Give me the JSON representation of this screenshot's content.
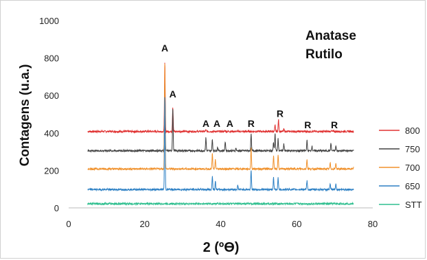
{
  "chart_data": {
    "type": "line",
    "xlabel": "2 (ºϴ)",
    "ylabel": "Contagens (u.a.)",
    "xlim": [
      0,
      80
    ],
    "ylim": [
      0,
      1000
    ],
    "xticks": [
      0,
      20,
      40,
      60,
      80
    ],
    "yticks": [
      0,
      200,
      400,
      600,
      800,
      1000
    ],
    "grid": false,
    "legend_position": "right",
    "annotation_lines": [
      "Anatase",
      "Rutilo"
    ],
    "x_range": [
      5,
      75
    ],
    "series": [
      {
        "name": "800",
        "color": "#e03030",
        "baseline": 408,
        "peaks": [
          [
            25.3,
            780
          ],
          [
            27.4,
            540
          ],
          [
            36.1,
            415
          ],
          [
            41.2,
            412
          ],
          [
            54.3,
            440
          ],
          [
            55.2,
            470
          ],
          [
            56.6,
            420
          ],
          [
            69.0,
            412
          ]
        ]
      },
      {
        "name": "750",
        "color": "#404040",
        "baseline": 305,
        "peaks": [
          [
            25.3,
            690
          ],
          [
            27.4,
            535
          ],
          [
            36.1,
            375
          ],
          [
            37.8,
            365
          ],
          [
            39.2,
            325
          ],
          [
            41.2,
            355
          ],
          [
            44.0,
            320
          ],
          [
            48.0,
            395
          ],
          [
            53.9,
            350
          ],
          [
            54.3,
            400
          ],
          [
            55.1,
            370
          ],
          [
            56.6,
            340
          ],
          [
            62.7,
            360
          ],
          [
            64.0,
            330
          ],
          [
            69.0,
            345
          ],
          [
            70.3,
            330
          ]
        ]
      },
      {
        "name": "700",
        "color": "#f0902a",
        "baseline": 208,
        "peaks": [
          [
            25.3,
            785
          ],
          [
            37.8,
            290
          ],
          [
            38.6,
            255
          ],
          [
            48.0,
            320
          ],
          [
            53.9,
            275
          ],
          [
            55.1,
            285
          ],
          [
            62.7,
            260
          ],
          [
            68.8,
            240
          ],
          [
            70.3,
            240
          ],
          [
            75.0,
            220
          ]
        ]
      },
      {
        "name": "650",
        "color": "#2b7fc4",
        "baseline": 98,
        "peaks": [
          [
            25.3,
            600
          ],
          [
            37.8,
            170
          ],
          [
            38.6,
            140
          ],
          [
            48.0,
            205
          ],
          [
            53.9,
            160
          ],
          [
            55.1,
            165
          ],
          [
            62.7,
            145
          ],
          [
            68.8,
            125
          ],
          [
            70.3,
            128
          ],
          [
            44.5,
            120
          ]
        ]
      },
      {
        "name": "STT",
        "color": "#2fbf8f",
        "baseline": 22,
        "peaks": []
      }
    ],
    "peak_labels": [
      {
        "text": "A",
        "x": 25.3,
        "y": 835
      },
      {
        "text": "A",
        "x": 27.4,
        "y": 590
      },
      {
        "text": "A",
        "x": 36.1,
        "y": 432
      },
      {
        "text": "A",
        "x": 39.0,
        "y": 432
      },
      {
        "text": "A",
        "x": 42.4,
        "y": 432
      },
      {
        "text": "R",
        "x": 48.0,
        "y": 432
      },
      {
        "text": "R",
        "x": 55.6,
        "y": 485
      },
      {
        "text": "R",
        "x": 62.9,
        "y": 425
      },
      {
        "text": "R",
        "x": 69.9,
        "y": 425
      }
    ]
  }
}
